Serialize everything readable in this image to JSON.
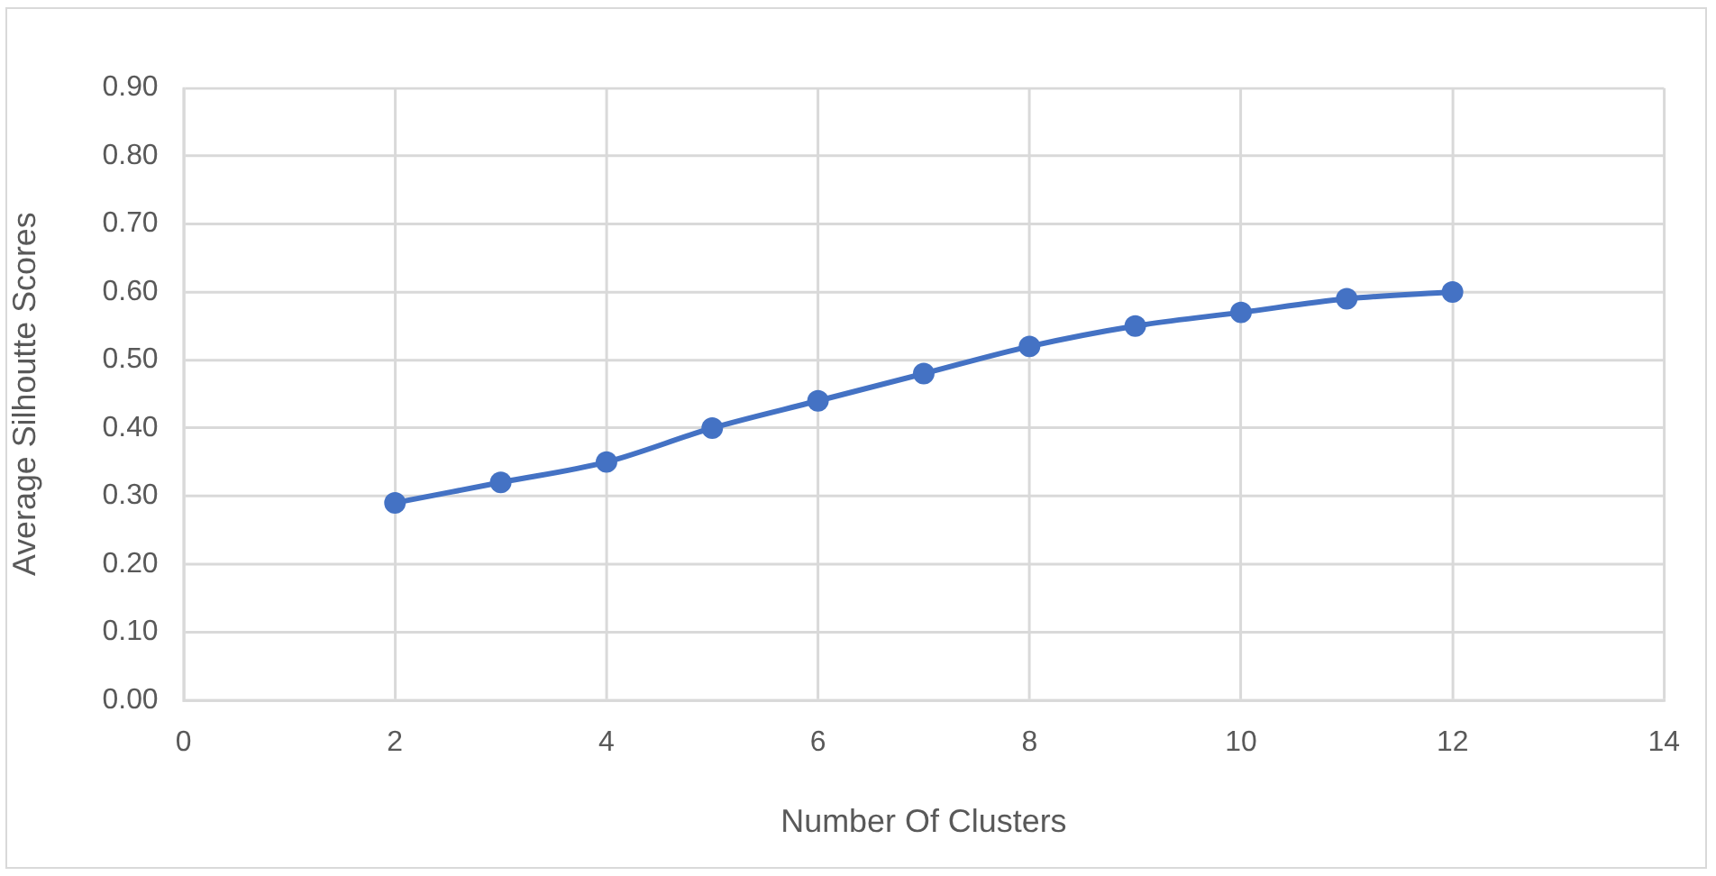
{
  "chart_data": {
    "type": "line",
    "x": [
      2,
      3,
      4,
      5,
      6,
      7,
      8,
      9,
      10,
      11,
      12
    ],
    "values": [
      0.29,
      0.32,
      0.35,
      0.4,
      0.44,
      0.48,
      0.52,
      0.55,
      0.57,
      0.59,
      0.6
    ],
    "color": "#4472c4",
    "marker": "circle",
    "line_style": "solid",
    "xlabel": "Number Of Clusters",
    "ylabel": "Average Silhoutte Scores",
    "xlim": [
      0,
      14
    ],
    "xticks": [
      0,
      2,
      4,
      6,
      8,
      10,
      12,
      14
    ],
    "ylim": [
      0,
      0.9
    ],
    "yticks": [
      {
        "value": 0,
        "label": "0.00"
      },
      {
        "value": 0.1,
        "label": "0.10"
      },
      {
        "value": 0.2,
        "label": "0.20"
      },
      {
        "value": 0.3,
        "label": "0.30"
      },
      {
        "value": 0.4,
        "label": "0.40"
      },
      {
        "value": 0.5,
        "label": "0.50"
      },
      {
        "value": 0.6,
        "label": "0.60"
      },
      {
        "value": 0.7,
        "label": "0.70"
      },
      {
        "value": 0.8,
        "label": "0.80"
      },
      {
        "value": 0.9,
        "label": "0.90"
      }
    ],
    "grid": true
  }
}
